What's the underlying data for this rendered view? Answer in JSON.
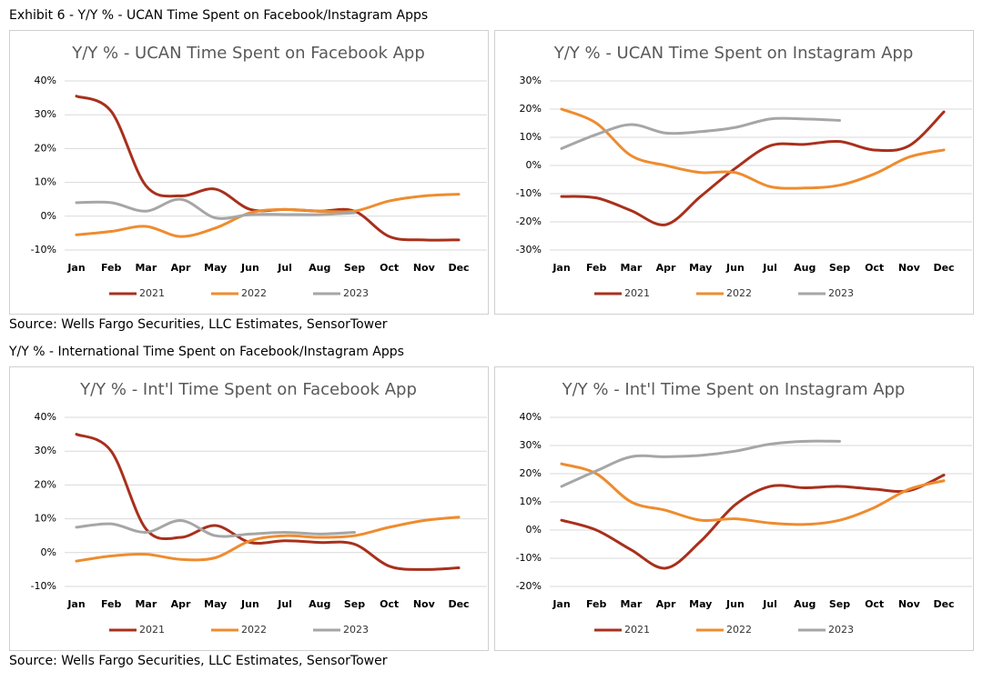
{
  "headings": [
    "Exhibit 6 - Y/Y % - UCAN Time Spent on Facebook/Instagram Apps",
    "Y/Y % - International Time Spent on Facebook/Instagram Apps"
  ],
  "sources": [
    "Source: Wells Fargo Securities, LLC Estimates, SensorTower",
    "Source: Wells Fargo Securities, LLC Estimates, SensorTower"
  ],
  "chart_data": [
    {
      "type": "line",
      "title": "Y/Y % - UCAN Time Spent on Facebook App",
      "grid": true,
      "legend": "bottom",
      "categories": [
        "Jan",
        "Feb",
        "Mar",
        "Apr",
        "May",
        "Jun",
        "Jul",
        "Aug",
        "Sep",
        "Oct",
        "Nov",
        "Dec"
      ],
      "ylim": [
        -10,
        40
      ],
      "yticks": [
        {
          "value": -10,
          "label": "-10%"
        },
        {
          "value": 0,
          "label": "0%"
        },
        {
          "value": 10,
          "label": "10%"
        },
        {
          "value": 20,
          "label": "20%"
        },
        {
          "value": 30,
          "label": "30%"
        },
        {
          "value": 40,
          "label": "40%"
        }
      ],
      "series": [
        {
          "name": "2021",
          "color": "#a8301c",
          "values": [
            35.5,
            31,
            9,
            6,
            8,
            2,
            2,
            1.5,
            1.5,
            -6,
            -7,
            -7
          ]
        },
        {
          "name": "2022",
          "color": "#ee8c2f",
          "values": [
            -5.5,
            -4.5,
            -3,
            -6,
            -3.5,
            1,
            2,
            1.5,
            1.5,
            4.5,
            6,
            6.5
          ]
        },
        {
          "name": "2023",
          "color": "#a6a6a6",
          "values": [
            4,
            4,
            1.5,
            5,
            -0.5,
            0.5,
            0.5,
            0.5,
            1,
            null,
            null,
            null
          ]
        }
      ]
    },
    {
      "type": "line",
      "title": "Y/Y % - UCAN Time Spent on Instagram App",
      "grid": true,
      "legend": "bottom",
      "categories": [
        "Jan",
        "Feb",
        "Mar",
        "Apr",
        "May",
        "Jun",
        "Jul",
        "Aug",
        "Sep",
        "Oct",
        "Nov",
        "Dec"
      ],
      "ylim": [
        -30,
        30
      ],
      "yticks": [
        {
          "value": -30,
          "label": "-30%"
        },
        {
          "value": -20,
          "label": "-20%"
        },
        {
          "value": -10,
          "label": "-10%"
        },
        {
          "value": 0,
          "label": "0%"
        },
        {
          "value": 10,
          "label": "10%"
        },
        {
          "value": 20,
          "label": "20%"
        },
        {
          "value": 30,
          "label": "30%"
        }
      ],
      "series": [
        {
          "name": "2021",
          "color": "#a8301c",
          "values": [
            -11,
            -11.5,
            -16,
            -21,
            -11,
            -1,
            7,
            7.5,
            8.5,
            5.5,
            7,
            19
          ]
        },
        {
          "name": "2022",
          "color": "#ee8c2f",
          "values": [
            20,
            15,
            3.5,
            0,
            -2.5,
            -2.5,
            -7.5,
            -8,
            -7,
            -3,
            3,
            5.5
          ]
        },
        {
          "name": "2023",
          "color": "#a6a6a6",
          "values": [
            6,
            11,
            14.5,
            11.5,
            12,
            13.5,
            16.5,
            16.5,
            16,
            null,
            null,
            null
          ]
        }
      ]
    },
    {
      "type": "line",
      "title": "Y/Y % - Int'l Time Spent on Facebook App",
      "grid": true,
      "legend": "bottom",
      "categories": [
        "Jan",
        "Feb",
        "Mar",
        "Apr",
        "May",
        "Jun",
        "Jul",
        "Aug",
        "Sep",
        "Oct",
        "Nov",
        "Dec"
      ],
      "ylim": [
        -10,
        40
      ],
      "yticks": [
        {
          "value": -10,
          "label": "-10%"
        },
        {
          "value": 0,
          "label": "0%"
        },
        {
          "value": 10,
          "label": "10%"
        },
        {
          "value": 20,
          "label": "20%"
        },
        {
          "value": 30,
          "label": "30%"
        },
        {
          "value": 40,
          "label": "40%"
        }
      ],
      "series": [
        {
          "name": "2021",
          "color": "#a8301c",
          "values": [
            35,
            30,
            7,
            4.5,
            8,
            3,
            3.5,
            3,
            2.5,
            -4,
            -5,
            -4.5
          ]
        },
        {
          "name": "2022",
          "color": "#ee8c2f",
          "values": [
            -2.5,
            -1,
            -0.5,
            -2,
            -1.5,
            3.5,
            5,
            4.5,
            5,
            7.5,
            9.5,
            10.5
          ]
        },
        {
          "name": "2023",
          "color": "#a6a6a6",
          "values": [
            7.5,
            8.5,
            6,
            9.5,
            5,
            5.5,
            6,
            5.5,
            6,
            null,
            null,
            null
          ]
        }
      ]
    },
    {
      "type": "line",
      "title": "Y/Y % - Int'l Time Spent on Instagram App",
      "grid": true,
      "legend": "bottom",
      "categories": [
        "Jan",
        "Feb",
        "Mar",
        "Apr",
        "May",
        "Jun",
        "Jul",
        "Aug",
        "Sep",
        "Oct",
        "Nov",
        "Dec"
      ],
      "ylim": [
        -20,
        40
      ],
      "yticks": [
        {
          "value": -20,
          "label": "-20%"
        },
        {
          "value": -10,
          "label": "-10%"
        },
        {
          "value": 0,
          "label": "0%"
        },
        {
          "value": 10,
          "label": "10%"
        },
        {
          "value": 20,
          "label": "20%"
        },
        {
          "value": 30,
          "label": "30%"
        },
        {
          "value": 40,
          "label": "40%"
        }
      ],
      "series": [
        {
          "name": "2021",
          "color": "#a8301c",
          "values": [
            3.5,
            0,
            -7,
            -13.5,
            -4,
            9,
            15.5,
            15,
            15.5,
            14.5,
            14,
            19.5
          ]
        },
        {
          "name": "2022",
          "color": "#ee8c2f",
          "values": [
            23.5,
            20,
            10,
            7,
            3.5,
            4,
            2.5,
            2,
            3.5,
            8,
            14.5,
            17.5
          ]
        },
        {
          "name": "2023",
          "color": "#a6a6a6",
          "values": [
            15.5,
            21,
            26,
            26,
            26.5,
            28,
            30.5,
            31.5,
            31.5,
            null,
            null,
            null
          ]
        }
      ]
    }
  ]
}
